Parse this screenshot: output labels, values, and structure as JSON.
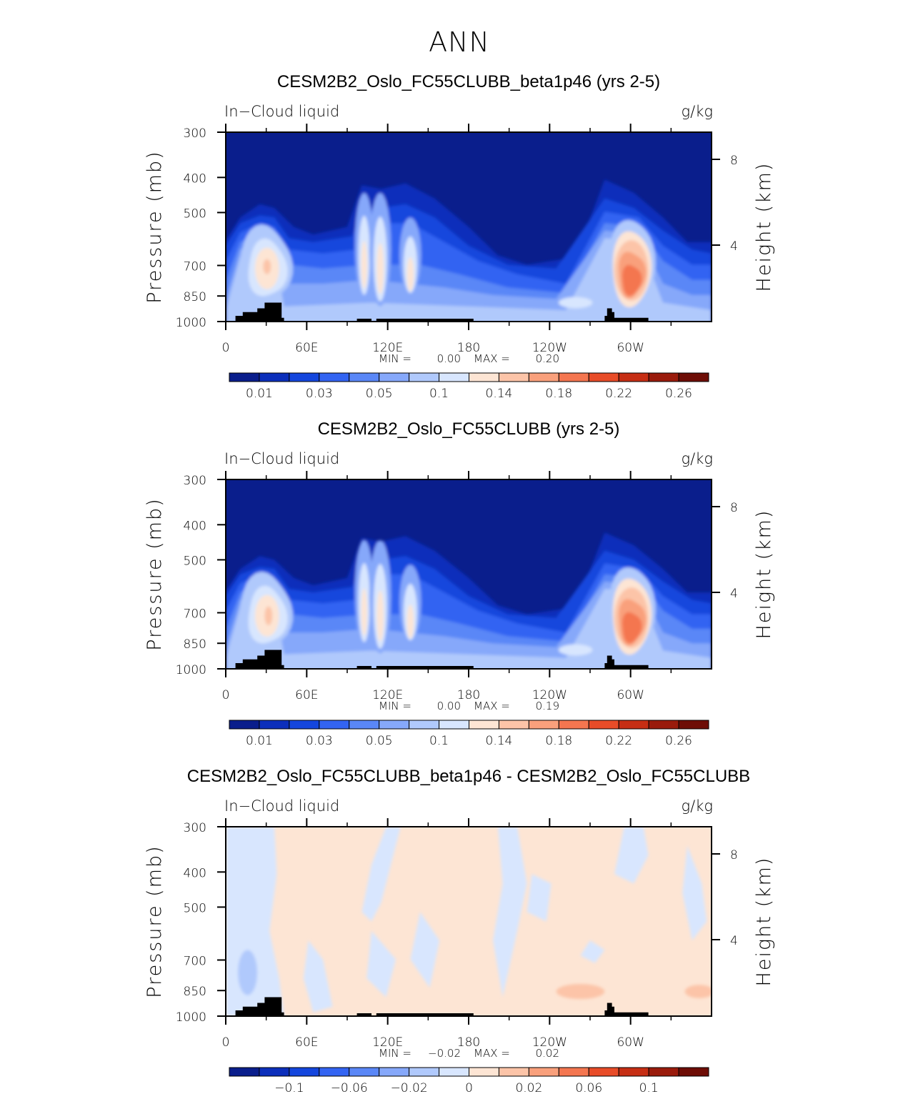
{
  "figure": {
    "title": "ANN"
  },
  "chart_data": [
    {
      "type": "heatmap",
      "title": "CESM2B2_Oslo_FC55CLUBB_beta1p46 (yrs 2-5)",
      "left_label": "In−Cloud liquid",
      "right_label": "g/kg",
      "ylabel": "Pressure (mb)",
      "ylabel2": "Height (km)",
      "xticks": [
        "0",
        "60E",
        "120E",
        "180",
        "120W",
        "60W"
      ],
      "yticks": [
        "300",
        "400",
        "500",
        "700",
        "850",
        "1000"
      ],
      "y2ticks": [
        "8",
        "4"
      ],
      "xlim": [
        0,
        360
      ],
      "ylim": [
        1000,
        300
      ],
      "y_scale": "log",
      "stats": {
        "min_label": "MIN =",
        "min": "0.00",
        "max_label": "MAX =",
        "max": "0.20"
      },
      "colorbar": {
        "labels": [
          "0.01",
          "0.03",
          "0.05",
          "0.1",
          "0.14",
          "0.18",
          "0.22",
          "0.26"
        ],
        "colors": [
          "#0a1e8c",
          "#0c2fbb",
          "#1446dd",
          "#3364f2",
          "#5a87f7",
          "#86a8fa",
          "#b0c9fc",
          "#d8e6fe",
          "#fde5d4",
          "#fcc4a8",
          "#f9a07c",
          "#f47650",
          "#e84c28",
          "#c62e14",
          "#9a1b0c",
          "#6e0d06"
        ]
      }
    },
    {
      "type": "heatmap",
      "title": "CESM2B2_Oslo_FC55CLUBB (yrs 2-5)",
      "left_label": "In−Cloud liquid",
      "right_label": "g/kg",
      "ylabel": "Pressure (mb)",
      "ylabel2": "Height (km)",
      "xticks": [
        "0",
        "60E",
        "120E",
        "180",
        "120W",
        "60W"
      ],
      "yticks": [
        "300",
        "400",
        "500",
        "700",
        "850",
        "1000"
      ],
      "y2ticks": [
        "8",
        "4"
      ],
      "xlim": [
        0,
        360
      ],
      "ylim": [
        1000,
        300
      ],
      "y_scale": "log",
      "stats": {
        "min_label": "MIN =",
        "min": "0.00",
        "max_label": "MAX =",
        "max": "0.19"
      },
      "colorbar": {
        "labels": [
          "0.01",
          "0.03",
          "0.05",
          "0.1",
          "0.14",
          "0.18",
          "0.22",
          "0.26"
        ],
        "colors": [
          "#0a1e8c",
          "#0c2fbb",
          "#1446dd",
          "#3364f2",
          "#5a87f7",
          "#86a8fa",
          "#b0c9fc",
          "#d8e6fe",
          "#fde5d4",
          "#fcc4a8",
          "#f9a07c",
          "#f47650",
          "#e84c28",
          "#c62e14",
          "#9a1b0c",
          "#6e0d06"
        ]
      }
    },
    {
      "type": "heatmap",
      "title": "CESM2B2_Oslo_FC55CLUBB_beta1p46 - CESM2B2_Oslo_FC55CLUBB",
      "left_label": "In−Cloud liquid",
      "right_label": "g/kg",
      "ylabel": "Pressure (mb)",
      "ylabel2": "Height (km)",
      "xticks": [
        "0",
        "60E",
        "120E",
        "180",
        "120W",
        "60W"
      ],
      "yticks": [
        "300",
        "400",
        "500",
        "700",
        "850",
        "1000"
      ],
      "y2ticks": [
        "8",
        "4"
      ],
      "xlim": [
        0,
        360
      ],
      "ylim": [
        1000,
        300
      ],
      "y_scale": "log",
      "stats": {
        "min_label": "MIN =",
        "min": "−0.02",
        "max_label": "MAX =",
        "max": "0.02"
      },
      "colorbar": {
        "labels": [
          "−0.1",
          "−0.06",
          "−0.02",
          "0",
          "0.02",
          "0.06",
          "0.1"
        ],
        "label_slots": [
          2,
          4,
          6,
          8,
          10,
          12,
          14
        ],
        "colors": [
          "#0a1e8c",
          "#0c2fbb",
          "#1446dd",
          "#3364f2",
          "#5a87f7",
          "#86a8fa",
          "#b0c9fc",
          "#d8e6fe",
          "#fde5d4",
          "#fcc4a8",
          "#f9a07c",
          "#f47650",
          "#e84c28",
          "#c62e14",
          "#9a1b0c",
          "#6e0d06"
        ]
      }
    }
  ]
}
